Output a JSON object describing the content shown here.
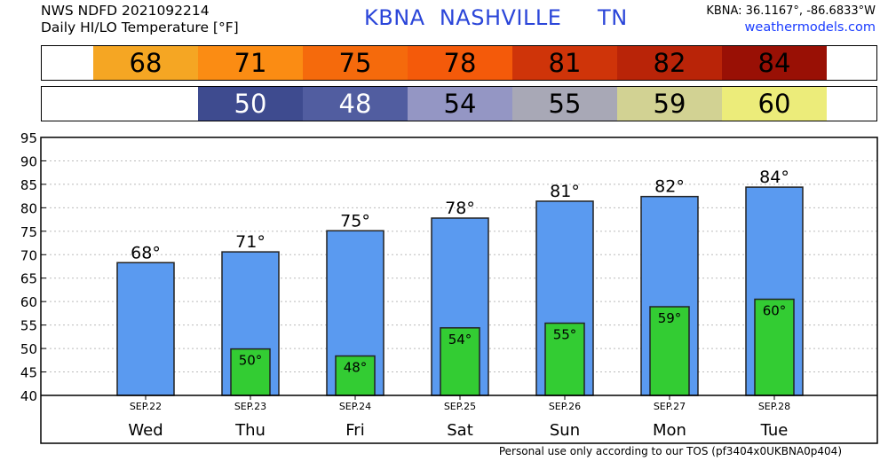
{
  "header": {
    "line1": "NWS NDFD 2021092214",
    "line2": "Daily HI/LO Temperature [°F]",
    "station_title": "KBNA  NASHVILLE     TN",
    "coords": "KBNA: 36.1167°, -86.6833°W",
    "site": "weathermodels.com"
  },
  "hi_strip": [
    {
      "value": "68",
      "color": "#f5a623"
    },
    {
      "value": "71",
      "color": "#fb8c13"
    },
    {
      "value": "75",
      "color": "#f56a0c"
    },
    {
      "value": "78",
      "color": "#f45a0a"
    },
    {
      "value": "81",
      "color": "#cf3409"
    },
    {
      "value": "82",
      "color": "#b92408"
    },
    {
      "value": "84",
      "color": "#991005"
    }
  ],
  "lo_strip": [
    {
      "value": "",
      "color": "#ffffff"
    },
    {
      "value": "50",
      "color": "#3e4b8f"
    },
    {
      "value": "48",
      "color": "#515da0"
    },
    {
      "value": "54",
      "color": "#9496c4"
    },
    {
      "value": "55",
      "color": "#a8a8b6"
    },
    {
      "value": "59",
      "color": "#d2d293"
    },
    {
      "value": "60",
      "color": "#ecec7a"
    }
  ],
  "chart_data": {
    "type": "bar",
    "ylim": [
      40,
      95
    ],
    "yticks": [
      "95",
      "90",
      "85",
      "80",
      "75",
      "70",
      "65",
      "60",
      "55",
      "50",
      "45",
      "40"
    ],
    "grid": true,
    "categories": [
      "Wed",
      "Thu",
      "Fri",
      "Sat",
      "Sun",
      "Mon",
      "Tue"
    ],
    "dates": [
      "SEP.22",
      "SEP.23",
      "SEP.24",
      "SEP.25",
      "SEP.26",
      "SEP.27",
      "SEP.28"
    ],
    "series": [
      {
        "values": [
          68.3,
          70.6,
          75.1,
          77.8,
          81.4,
          82.4,
          84.4
        ],
        "labels": [
          "68°",
          "71°",
          "75°",
          "78°",
          "81°",
          "82°",
          "84°"
        ],
        "color": "#5a9af0"
      },
      {
        "values": [
          null,
          49.9,
          48.4,
          54.4,
          55.4,
          58.9,
          60.5
        ],
        "labels": [
          "",
          "50°",
          "48°",
          "54°",
          "55°",
          "59°",
          "60°"
        ],
        "color": "#33cc33"
      }
    ]
  },
  "footer": "Personal use only according to our TOS (pf3404x0UKBNA0p404)"
}
